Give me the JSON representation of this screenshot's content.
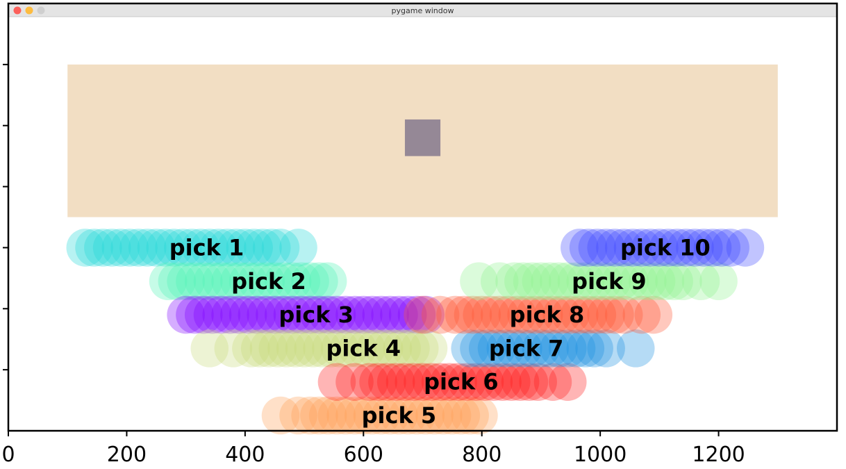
{
  "window": {
    "title": "pygame window",
    "traffic_lights": [
      "#fc605b",
      "#fdbc40",
      "#cfcfcf"
    ]
  },
  "chart_data": {
    "type": "scatter",
    "xlim": [
      0,
      1400
    ],
    "ylim": [
      700,
      0
    ],
    "xticks": [
      0,
      200,
      400,
      600,
      800,
      1000,
      1200
    ],
    "xtick_labels": [
      "0",
      "200",
      "400",
      "600",
      "800",
      "1000",
      "1200"
    ],
    "yticks": [
      100,
      200,
      300,
      400,
      500,
      600
    ],
    "ytick_labels": [
      "",
      "",
      "",
      "",
      "",
      ""
    ],
    "grid": false,
    "table_rect": {
      "x0": 100,
      "x1": 1300,
      "y0": 100,
      "y1": 350,
      "color": "#f2dec3"
    },
    "target_square": {
      "x0": 670,
      "x1": 730,
      "y0": 190,
      "y1": 250,
      "color": "#958896"
    },
    "marker_radius": 32,
    "series": [
      {
        "label": "pick 1",
        "label_x": 335,
        "y": 400,
        "color": "#1fd6d6",
        "x": [
          130,
          145,
          160,
          175,
          190,
          205,
          220,
          235,
          250,
          265,
          280,
          295,
          310,
          325,
          340,
          355,
          370,
          385,
          400,
          415,
          430,
          445,
          460,
          490
        ]
      },
      {
        "label": "pick 2",
        "label_x": 440,
        "y": 455,
        "color": "#4ff2b5",
        "x": [
          270,
          285,
          300,
          315,
          330,
          345,
          360,
          375,
          390,
          405,
          420,
          435,
          450,
          465,
          480,
          495,
          510,
          525,
          540
        ]
      },
      {
        "label": "pick 3",
        "label_x": 520,
        "y": 510,
        "color": "#7b00ff",
        "x": [
          300,
          315,
          330,
          345,
          360,
          375,
          390,
          405,
          420,
          435,
          450,
          465,
          480,
          495,
          510,
          525,
          540,
          555,
          570,
          585,
          600,
          615,
          630,
          645,
          660,
          675,
          690,
          705
        ]
      },
      {
        "label": "pick 4",
        "label_x": 600,
        "y": 565,
        "color": "#c8d97a",
        "x": [
          340,
          380,
          410,
          425,
          440,
          455,
          470,
          485,
          500,
          515,
          530,
          545,
          560,
          575,
          590,
          605,
          620,
          635,
          650,
          665,
          680,
          695,
          710
        ]
      },
      {
        "label": "pick 5",
        "label_x": 660,
        "y": 675,
        "color": "#ffa054",
        "x": [
          460,
          490,
          510,
          525,
          540,
          555,
          570,
          585,
          600,
          615,
          630,
          645,
          660,
          675,
          690,
          705,
          720,
          735,
          750,
          765,
          780,
          795
        ]
      },
      {
        "label": "pick 6",
        "label_x": 765,
        "y": 620,
        "color": "#ff1a1a",
        "x": [
          555,
          585,
          610,
          625,
          640,
          655,
          670,
          685,
          700,
          715,
          730,
          745,
          760,
          775,
          790,
          805,
          820,
          835,
          850,
          865,
          880,
          895,
          920,
          945
        ]
      },
      {
        "label": "pick 7",
        "label_x": 875,
        "y": 565,
        "color": "#1a8fe0",
        "x": [
          780,
          795,
          810,
          825,
          840,
          855,
          870,
          885,
          900,
          915,
          930,
          945,
          960,
          975,
          990,
          1010,
          1060
        ]
      },
      {
        "label": "pick 8",
        "label_x": 910,
        "y": 510,
        "color": "#ff5533",
        "x": [
          700,
          730,
          755,
          770,
          785,
          800,
          815,
          830,
          845,
          860,
          875,
          890,
          905,
          920,
          935,
          950,
          965,
          980,
          995,
          1010,
          1025,
          1040,
          1070,
          1090
        ]
      },
      {
        "label": "pick 9",
        "label_x": 1015,
        "y": 455,
        "color": "#8ff28f",
        "x": [
          795,
          830,
          855,
          870,
          885,
          900,
          915,
          930,
          945,
          960,
          975,
          990,
          1005,
          1020,
          1035,
          1050,
          1065,
          1080,
          1095,
          1110,
          1125,
          1140,
          1170,
          1200
        ]
      },
      {
        "label": "pick 10",
        "label_x": 1110,
        "y": 400,
        "color": "#3f47ff",
        "x": [
          965,
          980,
          995,
          1010,
          1025,
          1040,
          1055,
          1070,
          1085,
          1100,
          1115,
          1130,
          1145,
          1160,
          1175,
          1190,
          1205,
          1220,
          1245
        ]
      }
    ]
  }
}
